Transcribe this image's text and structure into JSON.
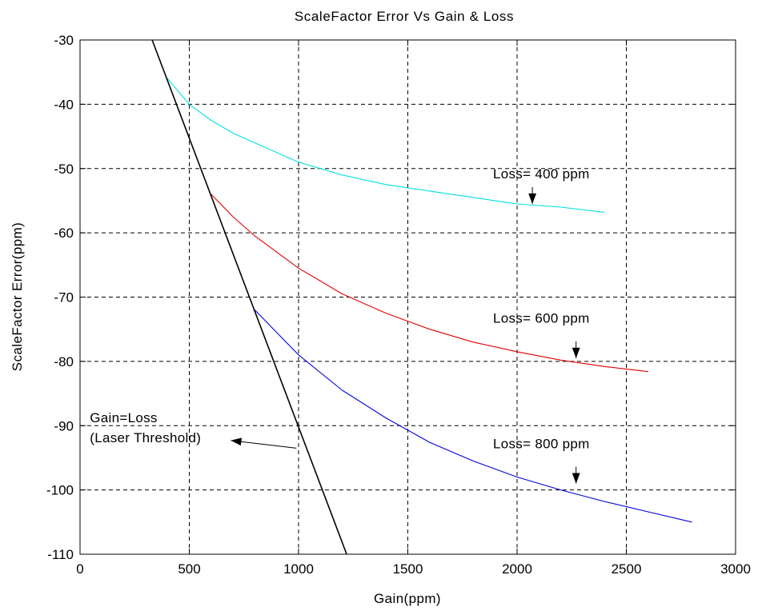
{
  "chart_data": {
    "type": "line",
    "title": "ScaleFactor Error Vs Gain & Loss",
    "xlabel": "Gain(ppm)",
    "ylabel": "ScaleFactor Error(ppm)",
    "xlim": [
      0,
      3000
    ],
    "ylim": [
      -110,
      -30
    ],
    "xticks": [
      0,
      500,
      1000,
      1500,
      2000,
      2500,
      3000
    ],
    "yticks": [
      -30,
      -40,
      -50,
      -60,
      -70,
      -80,
      -90,
      -100,
      -110
    ],
    "grid": true,
    "series": [
      {
        "color": "#00e0e0",
        "x": [
          400,
          500,
          600,
          700,
          800,
          900,
          1000,
          1200,
          1400,
          1600,
          1800,
          2000,
          2200,
          2400
        ],
        "y": [
          -36,
          -40,
          -42.5,
          -44.5,
          -46,
          -47.5,
          -49,
          -51,
          -52.5,
          -53.5,
          -54.5,
          -55.5,
          -56,
          -56.8
        ]
      },
      {
        "color": "#e00000",
        "x": [
          600,
          700,
          800,
          900,
          1000,
          1200,
          1400,
          1600,
          1800,
          2000,
          2200,
          2400,
          2600
        ],
        "y": [
          -54,
          -57.5,
          -60.5,
          -63,
          -65.5,
          -69.5,
          -72.5,
          -75,
          -77,
          -78.5,
          -79.8,
          -80.8,
          -81.6
        ]
      },
      {
        "color": "#0000e0",
        "x": [
          800,
          900,
          1000,
          1200,
          1400,
          1600,
          1800,
          2000,
          2200,
          2400,
          2600,
          2800
        ],
        "y": [
          -72,
          -75.5,
          -79,
          -84.5,
          -88.8,
          -92.6,
          -95.5,
          -98,
          -100,
          -101.8,
          -103.4,
          -105
        ]
      },
      {
        "color": "#000000",
        "x": [
          330,
          1220
        ],
        "y": [
          -30,
          -110
        ]
      }
    ],
    "annotations": [
      {
        "text": "Loss= 400 ppm",
        "x": 1890,
        "y": -51.5,
        "arrow_tip": [
          2070,
          -55.5
        ]
      },
      {
        "text": "Loss= 600 ppm",
        "x": 1890,
        "y": -74,
        "arrow_tip": [
          2270,
          -79.5
        ]
      },
      {
        "text": "Loss= 800 ppm",
        "x": 1890,
        "y": -93.5,
        "arrow_tip": [
          2270,
          -99
        ]
      },
      {
        "text": "Gain=Loss",
        "x": 45,
        "y": -89.5,
        "arrow_from": [
          990,
          -93.5
        ],
        "arrow_tip": [
          690,
          -92.3
        ]
      },
      {
        "text": "(Laser Threshold)",
        "x": 45,
        "y": -92.6
      }
    ]
  }
}
